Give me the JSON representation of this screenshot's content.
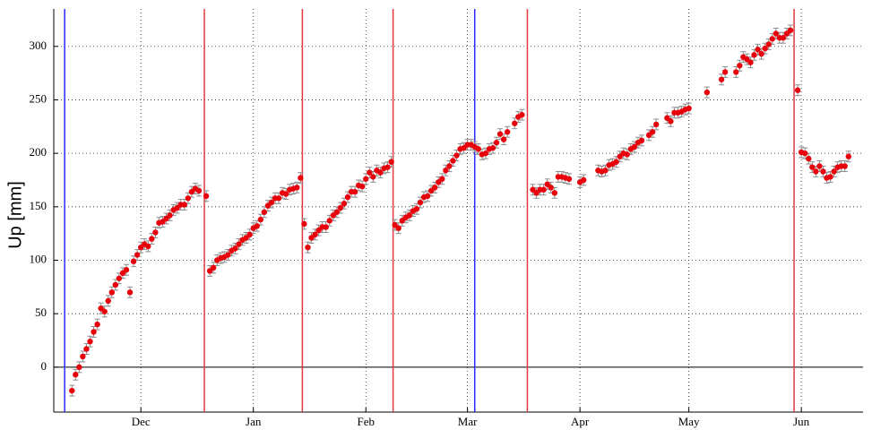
{
  "chart_data": {
    "type": "errorbar-scatter",
    "ylabel": "Up [mm]",
    "xlim": [
      -24,
      199
    ],
    "ylim": [
      -42,
      335
    ],
    "xticks": [
      {
        "value": 0,
        "label": "Dec"
      },
      {
        "value": 31,
        "label": "Jan"
      },
      {
        "value": 62,
        "label": "Feb"
      },
      {
        "value": 90,
        "label": "Mar"
      },
      {
        "value": 121,
        "label": "Apr"
      },
      {
        "value": 151,
        "label": "May"
      },
      {
        "value": 182,
        "label": "Jun"
      }
    ],
    "yticks": [
      0,
      50,
      100,
      150,
      200,
      250,
      300
    ],
    "grid": true,
    "zero_line": true,
    "color": "#e8000b",
    "error_color": "#8c8c8c",
    "error": 5,
    "vlines": [
      {
        "x": -21,
        "color": "#2a2aff"
      },
      {
        "x": 17.5,
        "color": "#e0393e"
      },
      {
        "x": 44.5,
        "color": "#e0393e"
      },
      {
        "x": 69.5,
        "color": "#e0393e"
      },
      {
        "x": 92,
        "color": "#2a2aff"
      },
      {
        "x": 106.5,
        "color": "#e0393e"
      },
      {
        "x": 180,
        "color": "#e0393e"
      }
    ],
    "x": [
      -19,
      -18,
      -17,
      -16,
      -15,
      -14,
      -13,
      -12,
      -11,
      -10,
      -9,
      -8,
      -7,
      -6,
      -5,
      -4,
      -3,
      -2,
      -1,
      0,
      1,
      2,
      3,
      4,
      5,
      6,
      7,
      8,
      9,
      10,
      11,
      12,
      13,
      14,
      15,
      16,
      18,
      19,
      20,
      21,
      22,
      23,
      24,
      25,
      26,
      27,
      28,
      29,
      30,
      31,
      32,
      33,
      34,
      35,
      36,
      37,
      38,
      39,
      40,
      41,
      42,
      43,
      44,
      45,
      46,
      47,
      48,
      49,
      50,
      51,
      52,
      53,
      54,
      55,
      56,
      57,
      58,
      59,
      60,
      61,
      62,
      63,
      64,
      65,
      66,
      67,
      68,
      69,
      70,
      71,
      72,
      73,
      74,
      75,
      76,
      77,
      78,
      79,
      80,
      81,
      82,
      83,
      84,
      85,
      86,
      87,
      88,
      89,
      90,
      91,
      92,
      93,
      94,
      95,
      96,
      97,
      98,
      99,
      100,
      101,
      103,
      104,
      105,
      108,
      109,
      110,
      111,
      112,
      113,
      114,
      115,
      116,
      117,
      118,
      121,
      122,
      126,
      127,
      128,
      129,
      130,
      131,
      132,
      133,
      134,
      135,
      136,
      137,
      138,
      140,
      141,
      142,
      145,
      146,
      147,
      148,
      149,
      150,
      151,
      156,
      160,
      161,
      164,
      165,
      166,
      167,
      168,
      169,
      170,
      171,
      172,
      173,
      174,
      175,
      176,
      177,
      178,
      179,
      181,
      182,
      183,
      184,
      185,
      186,
      187,
      188,
      189,
      190,
      191,
      192,
      193,
      194,
      195
    ],
    "values": [
      -22,
      -7,
      0,
      10,
      17,
      24,
      33,
      40,
      55,
      52,
      62,
      70,
      77,
      83,
      88,
      91,
      70,
      99,
      105,
      112,
      115,
      113,
      120,
      126,
      135,
      136,
      139,
      142,
      147,
      149,
      152,
      152,
      158,
      164,
      167,
      165,
      160,
      90,
      93,
      100,
      102,
      103,
      105,
      109,
      111,
      115,
      119,
      121,
      124,
      130,
      132,
      138,
      145,
      151,
      154,
      158,
      158,
      163,
      162,
      166,
      167,
      168,
      177,
      134,
      112,
      121,
      124,
      128,
      131,
      131,
      137,
      142,
      145,
      149,
      153,
      159,
      164,
      164,
      170,
      169,
      176,
      182,
      178,
      184,
      182,
      186,
      187,
      192,
      133,
      130,
      137,
      140,
      142,
      146,
      148,
      154,
      159,
      160,
      165,
      168,
      173,
      176,
      184,
      188,
      193,
      198,
      204,
      205,
      208,
      208,
      206,
      204,
      199,
      200,
      204,
      205,
      210,
      218,
      213,
      220,
      228,
      234,
      236,
      166,
      163,
      166,
      166,
      171,
      168,
      163,
      178,
      178,
      177,
      176,
      173,
      175,
      184,
      183,
      184,
      189,
      190,
      192,
      197,
      200,
      199,
      204,
      206,
      210,
      212,
      217,
      220,
      227,
      233,
      230,
      238,
      238,
      239,
      241,
      242,
      257,
      269,
      276,
      276,
      282,
      290,
      288,
      285,
      292,
      297,
      293,
      298,
      302,
      307,
      312,
      308,
      308,
      312,
      315,
      259,
      201,
      200,
      195,
      187,
      183,
      188,
      183,
      177,
      178,
      183,
      187,
      188,
      188,
      197
    ]
  }
}
